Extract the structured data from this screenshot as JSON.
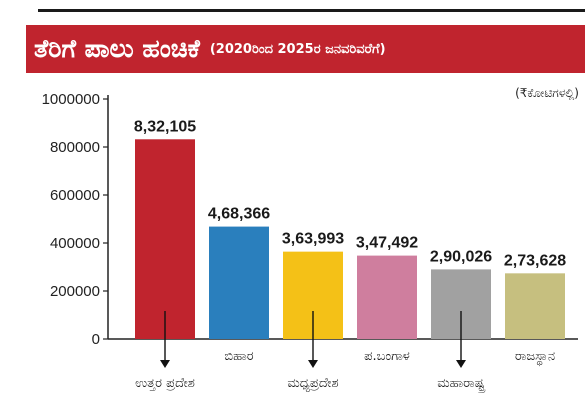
{
  "header": {
    "title": "ತೆರಿಗೆ ಪಾಲು ಹಂಚಿಕೆ",
    "subtitle": "(2020ರಿಂದ 2025ರ ಜನವರಿವರೆಗೆ)",
    "unit": "(₹ಕೋಟಿಗಳಲ್ಲಿ)"
  },
  "chart_data": {
    "type": "bar",
    "categories": [
      "ಉತ್ತರ ಪ್ರದೇಶ",
      "ಬಿಹಾರ",
      "ಮಧ್ಯಪ್ರದೇಶ",
      "ಪ.ಬಂಗಾಳ",
      "ಮಹಾರಾಷ್ಟ್ರ",
      "ರಾಜಸ್ಥಾನ"
    ],
    "values": [
      832105,
      468366,
      363993,
      347492,
      290026,
      273628
    ],
    "value_labels": [
      "8,32,105",
      "4,68,366",
      "3,63,993",
      "3,47,492",
      "2,90,026",
      "2,73,628"
    ],
    "colors": [
      "#c0242e",
      "#2a7fbd",
      "#f4c117",
      "#cf7e9e",
      "#a1a1a1",
      "#c6bf7f"
    ],
    "label_rows": [
      "low",
      "high",
      "low",
      "high",
      "low",
      "high"
    ],
    "yticks": [
      "1000000",
      "800000",
      "600000",
      "400000",
      "200000",
      "0"
    ],
    "ylim": [
      0,
      1000000
    ],
    "grid": false,
    "xlabel": "",
    "ylabel": ""
  }
}
